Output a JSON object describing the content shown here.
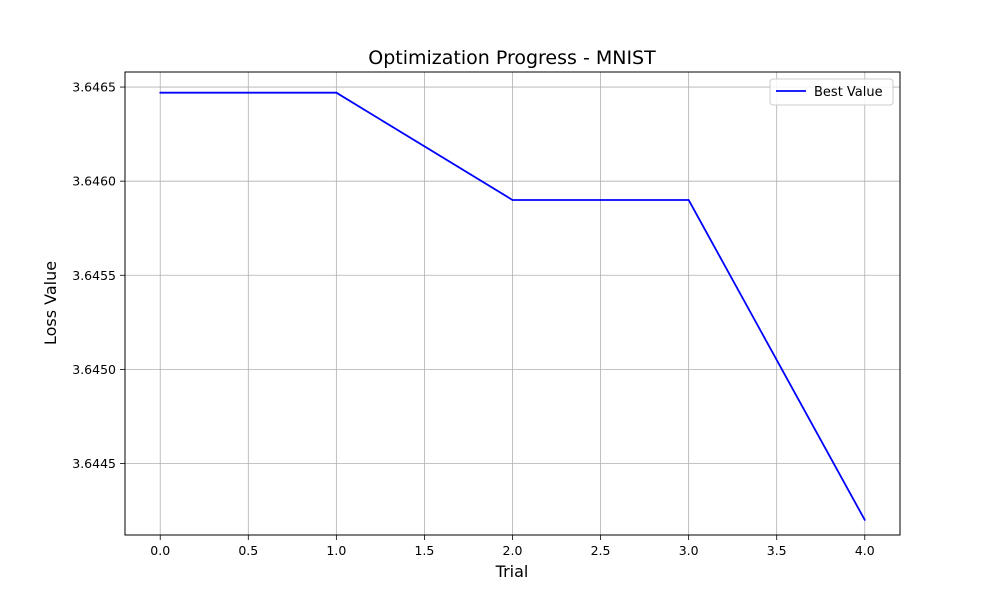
{
  "chart_data": {
    "type": "line",
    "title": "Optimization Progress - MNIST",
    "xlabel": "Trial",
    "ylabel": "Loss Value",
    "x": [
      0,
      1,
      2,
      3,
      4
    ],
    "series": [
      {
        "name": "Best Value",
        "color": "#0000ff",
        "values": [
          3.64647,
          3.64647,
          3.6459,
          3.6459,
          3.6442
        ]
      }
    ],
    "xlim": [
      -0.2,
      4.2
    ],
    "ylim": [
      3.64412,
      3.64658
    ],
    "xticks": [
      0.0,
      0.5,
      1.0,
      1.5,
      2.0,
      2.5,
      3.0,
      3.5,
      4.0
    ],
    "xtick_labels": [
      "0.0",
      "0.5",
      "1.0",
      "1.5",
      "2.0",
      "2.5",
      "3.0",
      "3.5",
      "4.0"
    ],
    "yticks": [
      3.6445,
      3.645,
      3.6455,
      3.646,
      3.6465
    ],
    "ytick_labels": [
      "3.6445",
      "3.6450",
      "3.6455",
      "3.6460",
      "3.6465"
    ],
    "grid": true,
    "legend_position": "top-right"
  }
}
